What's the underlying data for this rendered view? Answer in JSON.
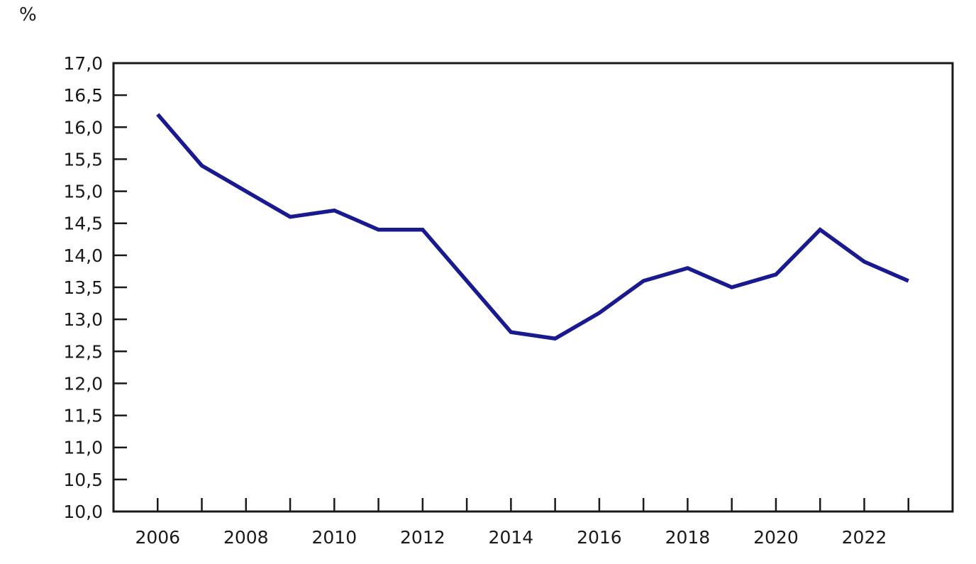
{
  "unit_label": "%",
  "chart_data": {
    "type": "line",
    "title": "",
    "xlabel": "",
    "ylabel": "%",
    "x": [
      2006,
      2007,
      2008,
      2009,
      2010,
      2011,
      2012,
      2013,
      2014,
      2015,
      2016,
      2017,
      2018,
      2019,
      2020,
      2021,
      2022,
      2023
    ],
    "series": [
      {
        "name": "percentage",
        "values": [
          16.2,
          15.4,
          15.0,
          14.6,
          14.7,
          14.4,
          14.4,
          13.6,
          12.8,
          12.7,
          13.1,
          13.6,
          13.8,
          13.5,
          13.7,
          14.4,
          13.9,
          13.6
        ]
      }
    ],
    "xlim": [
      2005,
      2024
    ],
    "ylim": [
      10.0,
      17.0
    ],
    "yticks": [
      10.0,
      10.5,
      11.0,
      11.5,
      12.0,
      12.5,
      13.0,
      13.5,
      14.0,
      14.5,
      15.0,
      15.5,
      16.0,
      16.5,
      17.0
    ],
    "ytick_labels": [
      "10,0",
      "10,5",
      "11,0",
      "11,5",
      "12,0",
      "12,5",
      "13,0",
      "13,5",
      "14,0",
      "14,5",
      "15,0",
      "15,5",
      "16,0",
      "16,5",
      "17,0"
    ],
    "xticks": [
      2006,
      2007,
      2008,
      2009,
      2010,
      2011,
      2012,
      2013,
      2014,
      2015,
      2016,
      2017,
      2018,
      2019,
      2020,
      2021,
      2022,
      2023
    ],
    "x_labeled_ticks": [
      2006,
      2008,
      2010,
      2012,
      2014,
      2016,
      2018,
      2020,
      2022
    ],
    "x_tick_labels": [
      "2006",
      "2008",
      "2010",
      "2012",
      "2014",
      "2016",
      "2018",
      "2020",
      "2022"
    ],
    "decimal_separator": ",",
    "grid": false,
    "legend_position": "none",
    "line_color": "#1a1a90",
    "axis_color": "#1a1a1a",
    "background_color": "#ffffff"
  }
}
